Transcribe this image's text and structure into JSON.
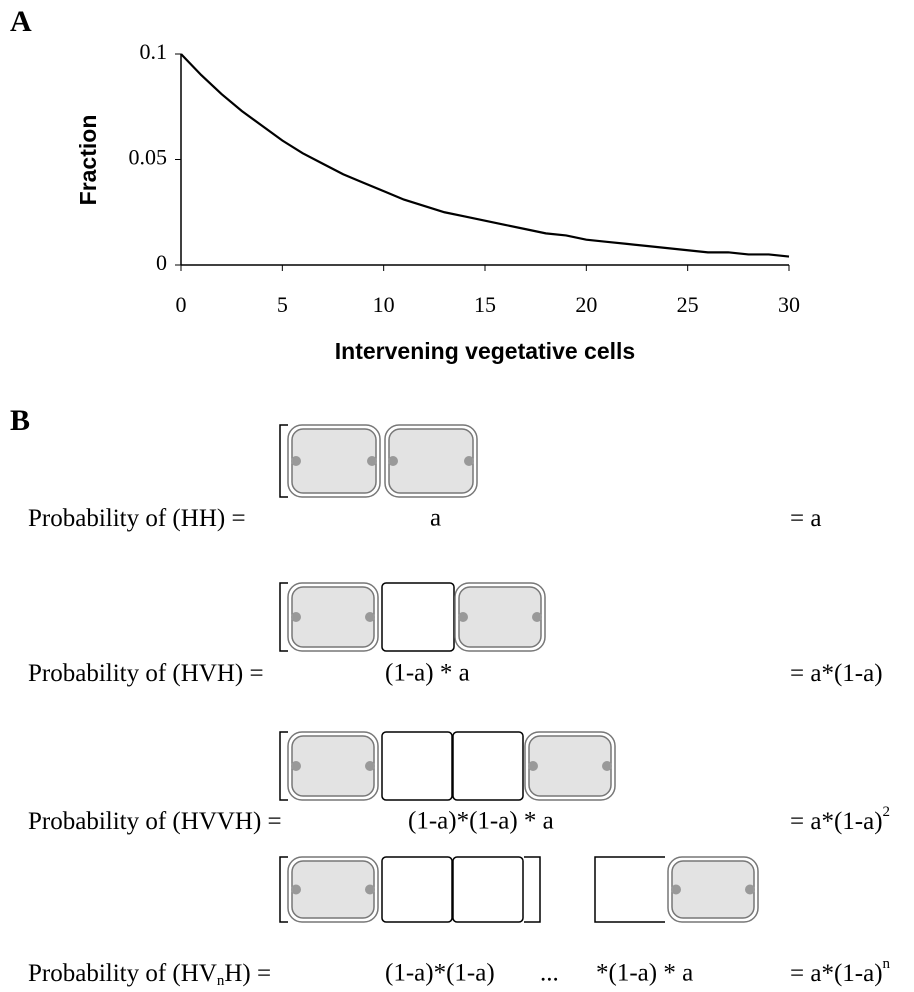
{
  "panel_a_label": "A",
  "chart_data": {
    "type": "line",
    "x_label": "Intervening vegetative cells",
    "y_label": "Fraction",
    "x": [
      0,
      1,
      2,
      3,
      4,
      5,
      6,
      7,
      8,
      9,
      10,
      11,
      12,
      13,
      14,
      15,
      16,
      17,
      18,
      19,
      20,
      21,
      22,
      23,
      24,
      25,
      26,
      27,
      28,
      29,
      30
    ],
    "series": [
      {
        "name": "Fraction",
        "color": "#000000",
        "values": [
          0.1,
          0.09,
          0.081,
          0.073,
          0.066,
          0.059,
          0.053,
          0.048,
          0.043,
          0.039,
          0.035,
          0.031,
          0.028,
          0.025,
          0.023,
          0.021,
          0.019,
          0.017,
          0.015,
          0.014,
          0.012,
          0.011,
          0.01,
          0.009,
          0.008,
          0.007,
          0.006,
          0.006,
          0.005,
          0.005,
          0.004
        ]
      }
    ],
    "xlim": [
      0,
      30
    ],
    "xticks": [
      0,
      5,
      10,
      15,
      20,
      25,
      30
    ],
    "ylim": [
      0,
      0.1
    ],
    "yticks": [
      0,
      0.05,
      0.1
    ],
    "grid": false
  },
  "panel_b": {
    "label": "B",
    "rows": [
      {
        "label": [
          "Probability of (HH) ="
        ],
        "expression": [
          "a"
        ],
        "result": [
          "= a"
        ]
      },
      {
        "label": [
          "Probability of (HVH) ="
        ],
        "expression": [
          "(1-a) * a"
        ],
        "result": [
          "= a*(1-a)"
        ]
      },
      {
        "label": [
          "Probability of (HVVH) ="
        ],
        "expression": [
          "(1-a)*(1-a) * a"
        ],
        "result": [
          "= a*(1-a)",
          "2"
        ]
      },
      {
        "label": [
          "Probability of (HV",
          "n",
          "H) ="
        ],
        "expression": [
          "(1-a)*(1-a)",
          "...",
          "*(1-a) * a"
        ],
        "result": [
          "= a*(1-a)",
          "n"
        ]
      }
    ]
  }
}
